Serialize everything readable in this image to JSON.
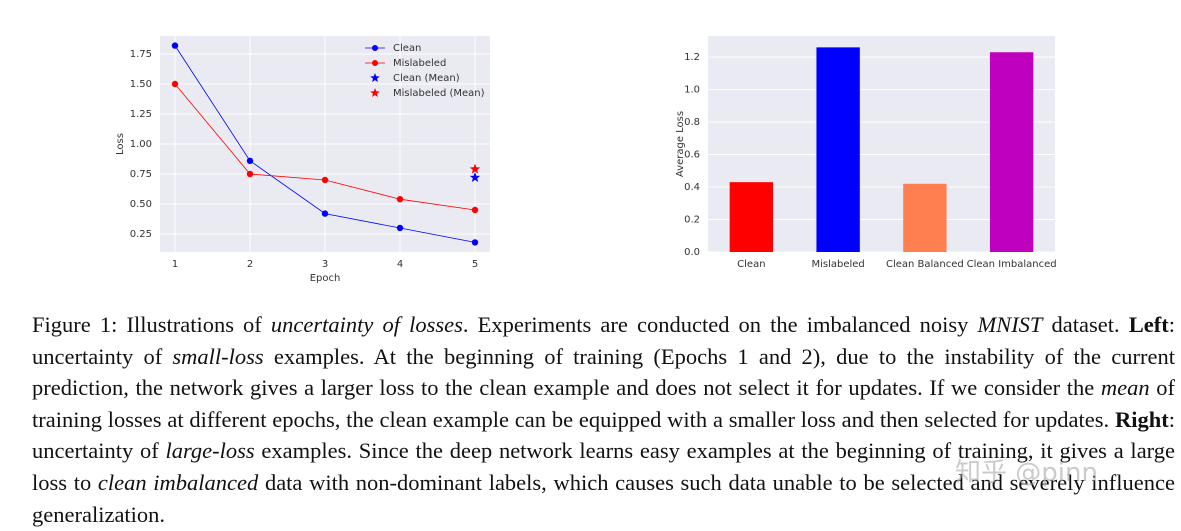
{
  "chart_data": [
    {
      "type": "line",
      "xlabel": "Epoch",
      "ylabel": "Loss",
      "x": [
        1,
        2,
        3,
        4,
        5
      ],
      "series": [
        {
          "name": "Clean",
          "color": "#0000ff",
          "marker": "circle",
          "values": [
            1.82,
            0.86,
            0.42,
            0.3,
            0.18
          ]
        },
        {
          "name": "Mislabeled",
          "color": "#ff0000",
          "marker": "circle",
          "values": [
            1.5,
            0.75,
            0.7,
            0.54,
            0.45
          ]
        },
        {
          "name": "Clean (Mean)",
          "color": "#0000ff",
          "marker": "star",
          "x": [
            5
          ],
          "values": [
            0.72
          ]
        },
        {
          "name": "Mislabeled (Mean)",
          "color": "#ff0000",
          "marker": "star",
          "x": [
            5
          ],
          "values": [
            0.79
          ]
        }
      ],
      "xlim": [
        0.8,
        5.2
      ],
      "xticks": [
        1,
        2,
        3,
        4,
        5
      ],
      "ylim": [
        0.1,
        1.9
      ],
      "yticks": [
        0.25,
        {
          "value": 0.5,
          "label": "0.50"
        },
        0.75,
        {
          "value": 1.0,
          "label": "1.00"
        },
        1.25,
        {
          "value": 1.5,
          "label": "1.50"
        },
        1.75
      ],
      "grid": true,
      "legend": "upper right"
    },
    {
      "type": "bar",
      "ylabel": "Average Loss",
      "categories": [
        "Clean",
        "Mislabeled",
        "Clean Balanced",
        "Clean Imbalanced"
      ],
      "values": [
        0.43,
        1.26,
        0.42,
        1.23
      ],
      "colors": [
        "#ff0000",
        "#0000ff",
        "#ff7f50",
        "#bf00bf"
      ],
      "ylim": [
        0,
        1.33
      ],
      "yticks": [
        {
          "value": 0,
          "label": "0.0"
        },
        0.2,
        0.4,
        0.6,
        0.8,
        {
          "value": 1.0,
          "label": "1.0"
        },
        1.2
      ],
      "grid": true
    }
  ],
  "caption": [
    "Figure 1: Illustrations of ",
    "uncertainty of losses",
    ". Experiments are conducted on the imbalanced noisy ",
    "MNIST",
    " dataset. ",
    "Left",
    ": uncertainty of ",
    "small-loss",
    " examples. At the beginning of training (Epochs 1 and 2), due to the instability of the current prediction, the network gives a larger loss to the clean example and does not select it for updates. If we consider the ",
    "mean",
    " of training losses at different epochs, the clean example can be equipped with a smaller loss and then selected for updates. ",
    "Right",
    ": uncertainty of ",
    "large-loss",
    " examples. Since the deep network learns easy examples at the beginning of training, it gives a large loss to ",
    "clean imbalanced",
    " data with non-dominant labels, which causes such data unable to be selected and severely influence generalization."
  ],
  "watermark": "知乎 @pinn"
}
